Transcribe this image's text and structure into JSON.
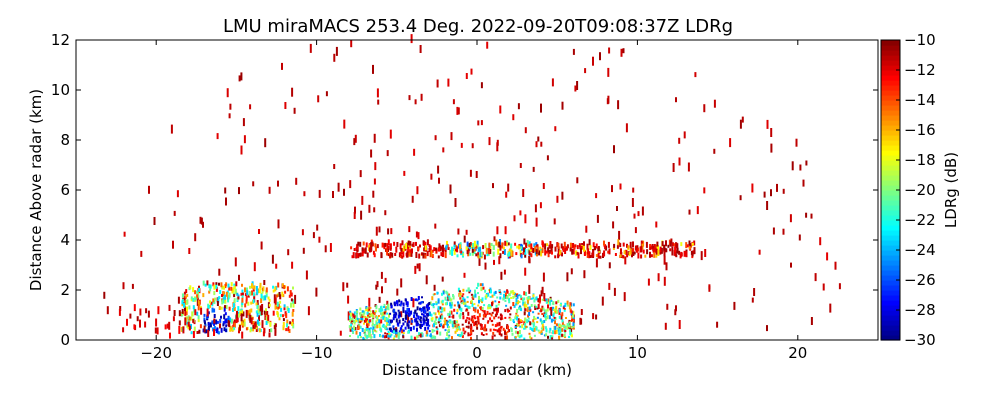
{
  "chart_data": {
    "type": "heatmap",
    "title": "LMU miraMACS 253.4 Deg. 2022-09-20T09:08:37Z  LDRg",
    "xlabel": "Distance from radar (km)",
    "ylabel": "Distance Above radar  (km)",
    "xlim": [
      -25,
      25
    ],
    "ylim": [
      0,
      12
    ],
    "x_ticks": [
      -20,
      -10,
      0,
      10,
      20
    ],
    "x_tick_labels": [
      "−20",
      "−10",
      "0",
      "10",
      "20"
    ],
    "y_ticks": [
      0,
      2,
      4,
      6,
      8,
      10,
      12
    ],
    "y_tick_labels": [
      "0",
      "2",
      "4",
      "6",
      "8",
      "10",
      "12"
    ],
    "colorbar": {
      "label": "LDRg (dB)",
      "min": -30,
      "max": -10,
      "colormap": "jet",
      "ticks": [
        -30,
        -28,
        -26,
        -24,
        -22,
        -20,
        -18,
        -16,
        -14,
        -12,
        -10
      ],
      "tick_labels": [
        "−30",
        "−28",
        "−26",
        "−24",
        "−22",
        "−20",
        "−18",
        "−16",
        "−14",
        "−12",
        "−10"
      ]
    },
    "regions": [
      {
        "name": "low-level band left",
        "x": [
          -19,
          -11.5
        ],
        "y": [
          0.2,
          2.3
        ],
        "ldr": [
          -30,
          -10
        ]
      },
      {
        "name": "near-radar cluster",
        "x": [
          -8.5,
          6
        ],
        "y": [
          0,
          2.3
        ],
        "ldr": [
          -30,
          -10
        ]
      },
      {
        "name": "melting layer",
        "x": [
          -8,
          13.5
        ],
        "y": [
          3.2,
          3.8
        ],
        "ldr": [
          -24,
          -10
        ]
      },
      {
        "name": "sparse upper echoes",
        "x": [
          -23,
          23
        ],
        "y": [
          0,
          12
        ],
        "ldr": [
          -12,
          -10
        ]
      }
    ]
  }
}
